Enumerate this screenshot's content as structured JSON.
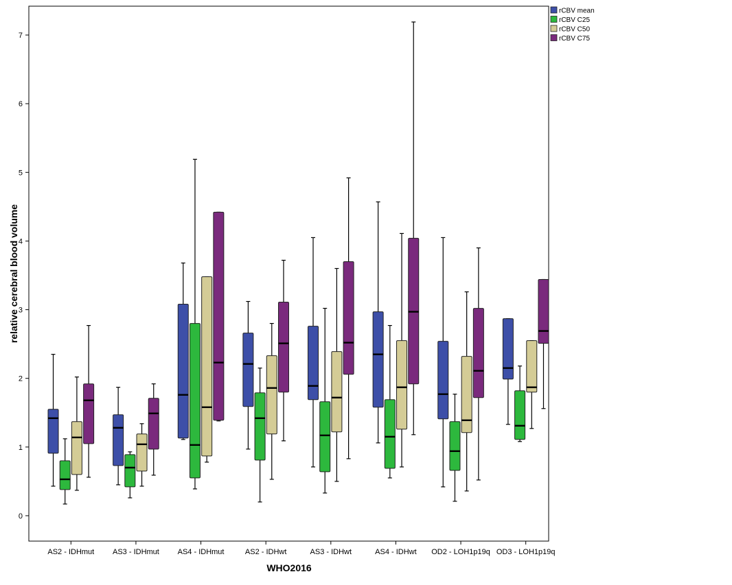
{
  "chart_data": {
    "type": "boxplot",
    "title": "",
    "xlabel": "WHO2016",
    "ylabel": "relative cerebral blood volume",
    "ylim": [
      -0.37,
      7.42
    ],
    "yticks": [
      0,
      1,
      2,
      3,
      4,
      5,
      6,
      7
    ],
    "grid": false,
    "legend_position": "top-right outside",
    "categories": [
      "AS2 - IDHmut",
      "AS3 - IDHmut",
      "AS4 - IDHmut",
      "AS2 - IDHwt",
      "AS3 - IDHwt",
      "AS4 - IDHwt",
      "OD2 - LOH1p19q",
      "OD3 - LOH1p19q"
    ],
    "series": [
      {
        "name": "rCBV mean",
        "color": "#3d4fa8",
        "boxes": [
          {
            "whisker_low": 0.43,
            "q1": 0.91,
            "median": 1.42,
            "q3": 1.55,
            "whisker_high": 2.35
          },
          {
            "whisker_low": 0.45,
            "q1": 0.73,
            "median": 1.28,
            "q3": 1.47,
            "whisker_high": 1.87
          },
          {
            "whisker_low": 1.11,
            "q1": 1.13,
            "median": 1.76,
            "q3": 3.08,
            "whisker_high": 3.68
          },
          {
            "whisker_low": 0.97,
            "q1": 1.59,
            "median": 2.21,
            "q3": 2.66,
            "whisker_high": 3.12
          },
          {
            "whisker_low": 0.71,
            "q1": 1.69,
            "median": 1.89,
            "q3": 2.76,
            "whisker_high": 4.05
          },
          {
            "whisker_low": 1.06,
            "q1": 1.58,
            "median": 2.35,
            "q3": 2.97,
            "whisker_high": 4.57
          },
          {
            "whisker_low": 0.42,
            "q1": 1.41,
            "median": 1.77,
            "q3": 2.54,
            "whisker_high": 4.05
          },
          {
            "whisker_low": 1.33,
            "q1": 1.99,
            "median": 2.15,
            "q3": 2.87,
            "whisker_high": 2.87
          }
        ]
      },
      {
        "name": "rCBV C25",
        "color": "#2db83d",
        "boxes": [
          {
            "whisker_low": 0.17,
            "q1": 0.38,
            "median": 0.53,
            "q3": 0.8,
            "whisker_high": 1.12
          },
          {
            "whisker_low": 0.26,
            "q1": 0.42,
            "median": 0.7,
            "q3": 0.89,
            "whisker_high": 0.93
          },
          {
            "whisker_low": 0.39,
            "q1": 0.55,
            "median": 1.03,
            "q3": 2.8,
            "whisker_high": 5.19
          },
          {
            "whisker_low": 0.2,
            "q1": 0.81,
            "median": 1.42,
            "q3": 1.79,
            "whisker_high": 2.15
          },
          {
            "whisker_low": 0.33,
            "q1": 0.64,
            "median": 1.17,
            "q3": 1.66,
            "whisker_high": 3.02
          },
          {
            "whisker_low": 0.55,
            "q1": 0.69,
            "median": 1.15,
            "q3": 1.69,
            "whisker_high": 2.77
          },
          {
            "whisker_low": 0.21,
            "q1": 0.66,
            "median": 0.94,
            "q3": 1.37,
            "whisker_high": 1.77
          },
          {
            "whisker_low": 1.08,
            "q1": 1.11,
            "median": 1.31,
            "q3": 1.82,
            "whisker_high": 2.18
          }
        ]
      },
      {
        "name": "rCBV C50",
        "color": "#d4cc96",
        "boxes": [
          {
            "whisker_low": 0.37,
            "q1": 0.6,
            "median": 1.14,
            "q3": 1.37,
            "whisker_high": 2.02
          },
          {
            "whisker_low": 0.43,
            "q1": 0.65,
            "median": 1.04,
            "q3": 1.19,
            "whisker_high": 1.34
          },
          {
            "whisker_low": 0.78,
            "q1": 0.87,
            "median": 1.58,
            "q3": 3.48,
            "whisker_high": 3.48
          },
          {
            "whisker_low": 0.53,
            "q1": 1.19,
            "median": 1.86,
            "q3": 2.33,
            "whisker_high": 2.8
          },
          {
            "whisker_low": 0.5,
            "q1": 1.22,
            "median": 1.72,
            "q3": 2.39,
            "whisker_high": 3.6
          },
          {
            "whisker_low": 0.71,
            "q1": 1.26,
            "median": 1.87,
            "q3": 2.55,
            "whisker_high": 4.11
          },
          {
            "whisker_low": 0.36,
            "q1": 1.21,
            "median": 1.39,
            "q3": 2.32,
            "whisker_high": 3.26
          },
          {
            "whisker_low": 1.27,
            "q1": 1.8,
            "median": 1.87,
            "q3": 2.55,
            "whisker_high": 2.55
          }
        ]
      },
      {
        "name": "rCBV C75",
        "color": "#7a2a7d",
        "boxes": [
          {
            "whisker_low": 0.56,
            "q1": 1.05,
            "median": 1.68,
            "q3": 1.92,
            "whisker_high": 2.77
          },
          {
            "whisker_low": 0.59,
            "q1": 0.97,
            "median": 1.49,
            "q3": 1.71,
            "whisker_high": 1.92
          },
          {
            "whisker_low": 1.38,
            "q1": 1.39,
            "median": 2.23,
            "q3": 4.42,
            "whisker_high": 4.42
          },
          {
            "whisker_low": 1.09,
            "q1": 1.8,
            "median": 2.51,
            "q3": 3.11,
            "whisker_high": 3.72
          },
          {
            "whisker_low": 0.83,
            "q1": 2.06,
            "median": 2.52,
            "q3": 3.7,
            "whisker_high": 4.92
          },
          {
            "whisker_low": 1.18,
            "q1": 1.92,
            "median": 2.97,
            "q3": 4.04,
            "whisker_high": 7.19
          },
          {
            "whisker_low": 0.52,
            "q1": 1.72,
            "median": 2.11,
            "q3": 3.02,
            "whisker_high": 3.9
          },
          {
            "whisker_low": 1.56,
            "q1": 2.51,
            "median": 2.69,
            "q3": 3.44,
            "whisker_high": 3.44
          }
        ]
      }
    ]
  }
}
